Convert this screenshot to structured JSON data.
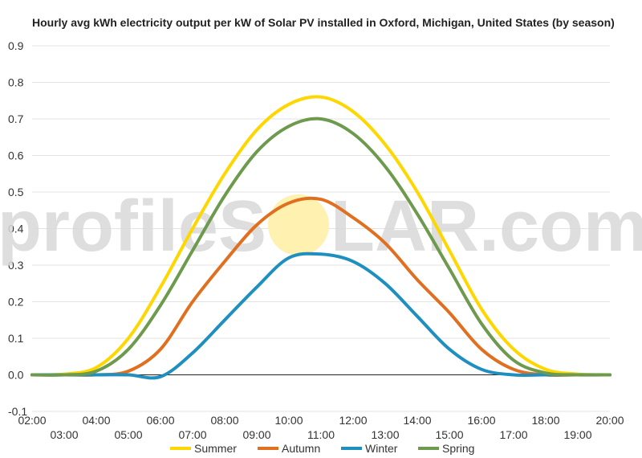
{
  "chart_data": {
    "type": "line",
    "title": "Hourly avg kWh electricity output per kW of Solar PV installed in Oxford, Michigan, United States (by season)",
    "xlabel": "",
    "ylabel": "",
    "x": [
      2,
      3,
      4,
      5,
      6,
      7,
      8,
      9,
      10,
      11,
      12,
      13,
      14,
      15,
      16,
      17,
      18,
      19,
      20
    ],
    "x_ticks": [
      "02:00",
      "03:00",
      "04:00",
      "05:00",
      "06:00",
      "07:00",
      "08:00",
      "09:00",
      "10:00",
      "11:00",
      "12:00",
      "13:00",
      "14:00",
      "15:00",
      "16:00",
      "17:00",
      "18:00",
      "19:00",
      "20:00"
    ],
    "xlim": [
      2,
      20
    ],
    "y_ticks": [
      "-0.1",
      "0.0",
      "0.1",
      "0.2",
      "0.3",
      "0.4",
      "0.5",
      "0.6",
      "0.7",
      "0.8",
      "0.9"
    ],
    "ylim": [
      -0.1,
      0.9
    ],
    "grid": true,
    "legend_position": "bottom",
    "series": [
      {
        "name": "Summer",
        "color": "#FFD700",
        "values": [
          0.0,
          0.002,
          0.02,
          0.1,
          0.24,
          0.4,
          0.55,
          0.67,
          0.74,
          0.76,
          0.72,
          0.63,
          0.5,
          0.34,
          0.18,
          0.07,
          0.015,
          0.002,
          0.0
        ]
      },
      {
        "name": "Autumn",
        "color": "#E07020",
        "values": [
          0.0,
          0.0,
          0.0,
          0.01,
          0.07,
          0.2,
          0.31,
          0.41,
          0.47,
          0.48,
          0.43,
          0.36,
          0.26,
          0.17,
          0.07,
          0.015,
          0.0,
          0.0,
          0.0
        ]
      },
      {
        "name": "Winter",
        "color": "#1F8FC0",
        "values": [
          0.0,
          0.0,
          0.0,
          0.0,
          -0.005,
          0.06,
          0.15,
          0.24,
          0.32,
          0.33,
          0.31,
          0.25,
          0.16,
          0.07,
          0.015,
          0.0,
          0.0,
          0.0,
          0.0
        ]
      },
      {
        "name": "Spring",
        "color": "#6E9A4E",
        "values": [
          0.0,
          0.0,
          0.01,
          0.07,
          0.19,
          0.34,
          0.49,
          0.61,
          0.68,
          0.7,
          0.66,
          0.57,
          0.44,
          0.29,
          0.14,
          0.04,
          0.005,
          0.0,
          0.0
        ]
      }
    ],
    "watermark": {
      "text_left": "profileS",
      "text_right": "LAR.com",
      "sun_color": "#FFF1B0"
    }
  }
}
